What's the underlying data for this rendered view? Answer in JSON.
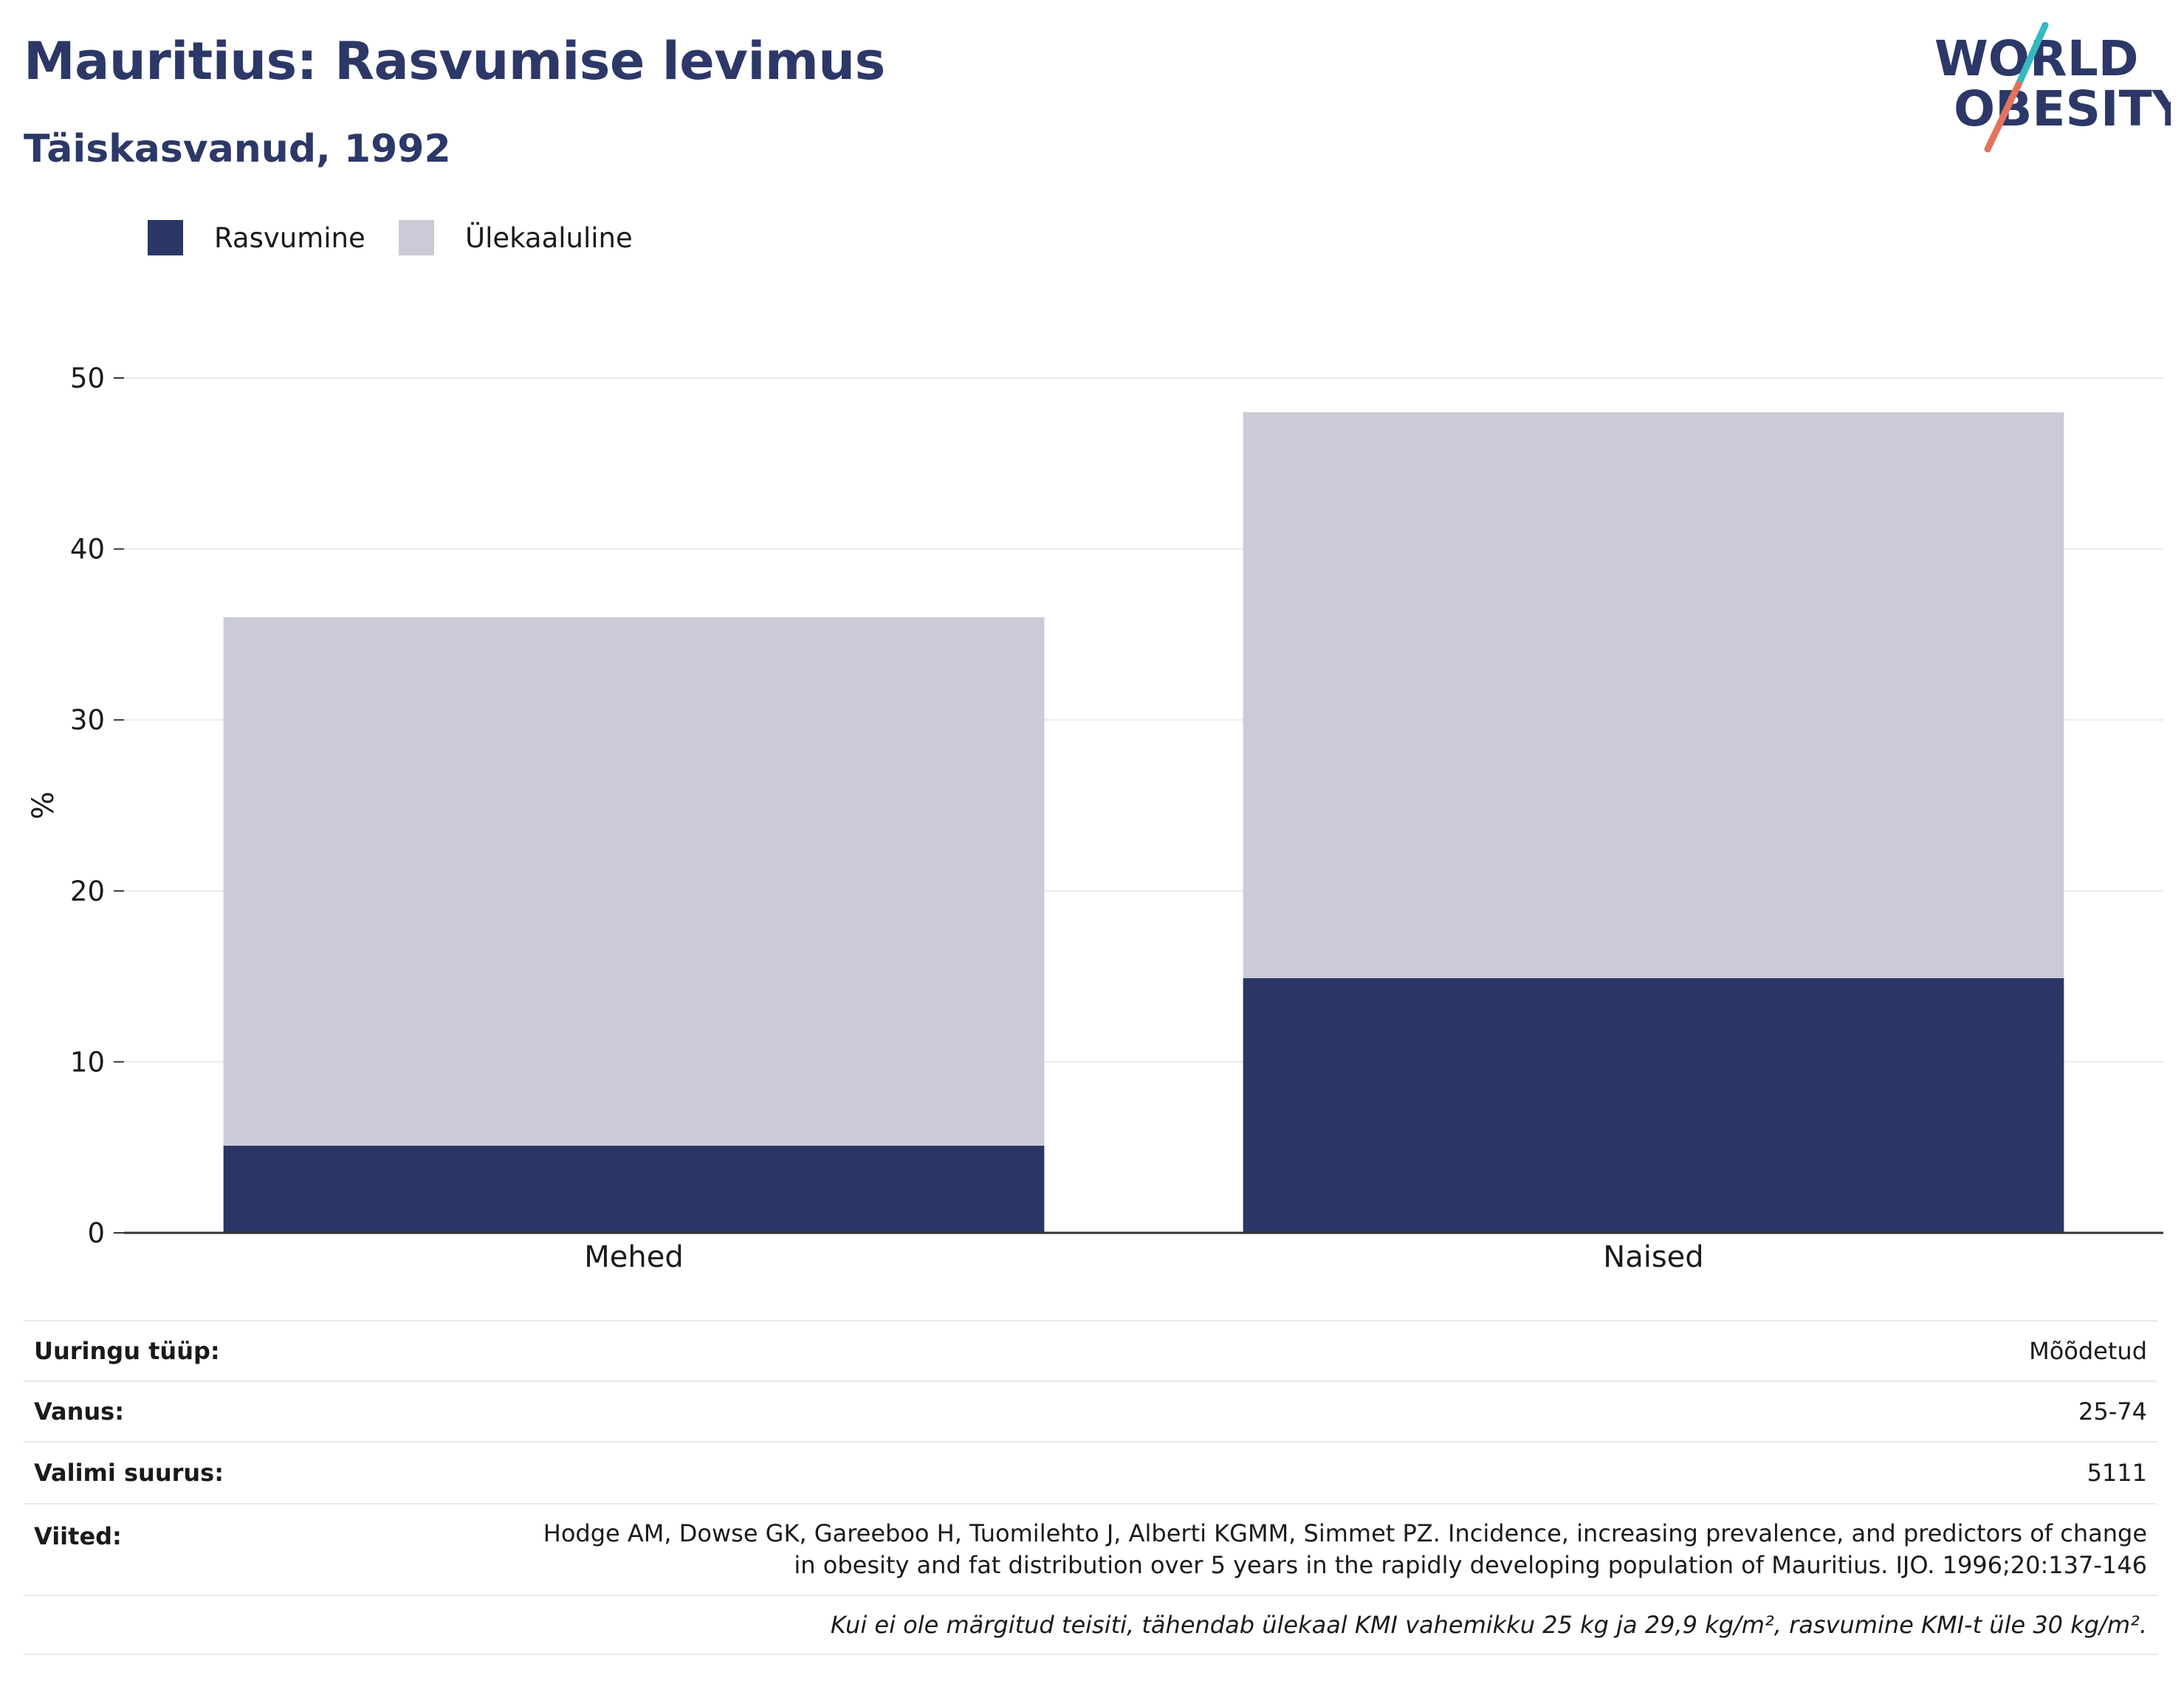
{
  "header": {
    "title": "Mauritius: Rasvumise levimus",
    "subtitle": "Täiskasvanud, 1992"
  },
  "logo": {
    "line1": "WORLD",
    "line2": "OBESITY",
    "icon": "world-obesity-logo"
  },
  "legend": [
    {
      "label": "Rasvumine",
      "color": "#2a3665"
    },
    {
      "label": "Ülekaaluline",
      "color": "#cacbd7"
    }
  ],
  "chart_data": {
    "type": "bar",
    "stacked": true,
    "categories": [
      "Mehed",
      "Naised"
    ],
    "series": [
      {
        "name": "Rasvumine",
        "color": "#2a3665",
        "values": [
          5.1,
          14.9
        ]
      },
      {
        "name": "Ülekaaluline",
        "color": "#cacbd7",
        "values": [
          30.9,
          33.1
        ]
      }
    ],
    "ylabel": "%",
    "ylim": [
      0,
      50
    ],
    "yticks": [
      0,
      10,
      20,
      30,
      40,
      50
    ],
    "grid": true,
    "legend_position": "top-left"
  },
  "info": {
    "rows": [
      {
        "key": "Uuringu tüüp:",
        "value": "Mõõdetud"
      },
      {
        "key": "Vanus:",
        "value": "25-74"
      },
      {
        "key": "Valimi suurus:",
        "value": "5111"
      },
      {
        "key": "Viited:",
        "value_line1": "Hodge AM, Dowse GK, Gareeboo H, Tuomilehto J, Alberti KGMM, Simmet PZ. Incidence, increasing prevalence, and predictors of change",
        "value_line2": "in obesity and fat distribution over 5 years in the rapidly developing population of Mauritius. IJO. 1996;20:137-146"
      }
    ],
    "note": "Kui ei ole märgitud teisiti, tähendab ülekaal KMI vahemikku 25 kg ja 29,9 kg/m², rasvumine KMI-t üle 30 kg/m²."
  }
}
